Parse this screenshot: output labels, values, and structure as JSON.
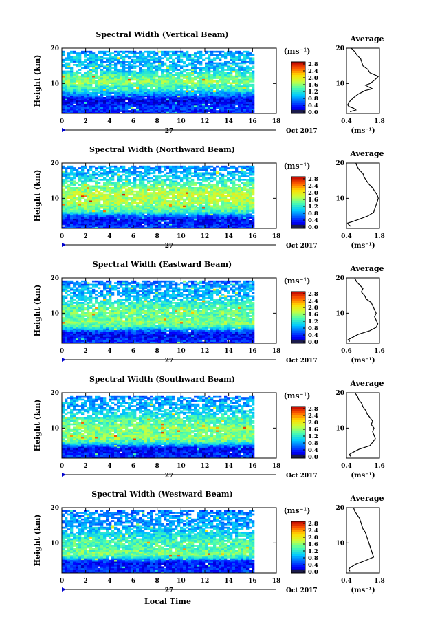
{
  "figure": {
    "xlabel_bottom": "Local Time",
    "date_label": "Oct 2017",
    "day_label": "27",
    "unit_label": "(ms⁻¹)",
    "average_title": "Average",
    "height_label": "Height (km)"
  },
  "chart_data": [
    {
      "type": "heatmap",
      "title": "Spectral Width (Vertical Beam)",
      "xlabel": "Local Time",
      "ylabel": "Height (km)",
      "x_ticks": [
        "0",
        "2",
        "4",
        "6",
        "8",
        "10",
        "12",
        "14",
        "16",
        "18"
      ],
      "xlim": [
        0,
        18
      ],
      "data_xlim": [
        0,
        16
      ],
      "y_ticks": [
        "10",
        "20"
      ],
      "ylim": [
        1.5,
        20
      ],
      "colorbar": {
        "label": "(ms⁻¹)",
        "ticks": [
          "0.0",
          "0.4",
          "0.8",
          "1.2",
          "1.6",
          "2.0",
          "2.4",
          "2.8"
        ],
        "range": [
          0,
          3.0
        ]
      },
      "rows": [
        {
          "h": 2.0,
          "v": 0.45
        },
        {
          "h": 3.0,
          "v": 0.6
        },
        {
          "h": 4.0,
          "v": 0.4
        },
        {
          "h": 5.0,
          "v": 0.3
        },
        {
          "h": 6.0,
          "v": 0.55
        },
        {
          "h": 7.0,
          "v": 0.9
        },
        {
          "h": 8.0,
          "v": 1.3
        },
        {
          "h": 9.0,
          "v": 1.4
        },
        {
          "h": 10.0,
          "v": 1.7
        },
        {
          "h": 11.0,
          "v": 1.6
        },
        {
          "h": 12.0,
          "v": 1.5
        },
        {
          "h": 13.0,
          "v": 1.2
        },
        {
          "h": 14.0,
          "v": 1.0
        },
        {
          "h": 15.0,
          "v": 1.1
        },
        {
          "h": 16.0,
          "v": 0.9
        },
        {
          "h": 17.0,
          "v": 1.2
        },
        {
          "h": 18.0,
          "v": 1.0
        },
        {
          "h": 19.0,
          "v": 0.8
        }
      ],
      "average": {
        "title": "Average",
        "xlabel": "(ms⁻¹)",
        "x_ticks": [
          "0.4",
          "1.8"
        ],
        "xlim": [
          0.4,
          1.8
        ],
        "y_ticks": [
          "10",
          "20"
        ],
        "ylim": [
          1.5,
          20
        ],
        "profile": [
          [
            2.0,
            0.55
          ],
          [
            2.5,
            0.8
          ],
          [
            3.0,
            0.7
          ],
          [
            3.5,
            0.5
          ],
          [
            4.0,
            0.45
          ],
          [
            5.0,
            0.55
          ],
          [
            6.0,
            0.7
          ],
          [
            7.0,
            0.9
          ],
          [
            8.0,
            1.2
          ],
          [
            8.5,
            1.5
          ],
          [
            9.0,
            1.35
          ],
          [
            9.5,
            1.2
          ],
          [
            10.0,
            1.4
          ],
          [
            11.0,
            1.6
          ],
          [
            12.0,
            1.75
          ],
          [
            13.0,
            1.4
          ],
          [
            14.0,
            1.3
          ],
          [
            15.0,
            1.1
          ],
          [
            16.0,
            1.05
          ],
          [
            17.0,
            1.0
          ],
          [
            18.0,
            0.85
          ],
          [
            19.0,
            0.75
          ],
          [
            20.0,
            0.6
          ]
        ]
      }
    },
    {
      "type": "heatmap",
      "title": "Spectral Width (Northward Beam)",
      "xlabel": "Local Time",
      "ylabel": "Height (km)",
      "x_ticks": [
        "0",
        "2",
        "4",
        "6",
        "8",
        "10",
        "12",
        "14",
        "16",
        "18"
      ],
      "xlim": [
        0,
        18
      ],
      "data_xlim": [
        0,
        16
      ],
      "y_ticks": [
        "10",
        "20"
      ],
      "ylim": [
        1.5,
        20
      ],
      "colorbar": {
        "label": "(ms⁻¹)",
        "ticks": [
          "0.0",
          "0.4",
          "0.8",
          "1.2",
          "1.6",
          "2.0",
          "2.4",
          "2.8"
        ],
        "range": [
          0,
          3.0
        ]
      },
      "rows": [
        {
          "h": 2.0,
          "v": 0.5
        },
        {
          "h": 3.0,
          "v": 0.4
        },
        {
          "h": 4.0,
          "v": 0.35
        },
        {
          "h": 5.0,
          "v": 0.8
        },
        {
          "h": 6.0,
          "v": 1.4
        },
        {
          "h": 7.0,
          "v": 1.6
        },
        {
          "h": 8.0,
          "v": 1.7
        },
        {
          "h": 9.0,
          "v": 1.8
        },
        {
          "h": 10.0,
          "v": 1.8
        },
        {
          "h": 11.0,
          "v": 1.9
        },
        {
          "h": 12.0,
          "v": 1.7
        },
        {
          "h": 13.0,
          "v": 1.6
        },
        {
          "h": 14.0,
          "v": 1.5
        },
        {
          "h": 15.0,
          "v": 1.2
        },
        {
          "h": 16.0,
          "v": 1.1
        },
        {
          "h": 17.0,
          "v": 1.0
        },
        {
          "h": 18.0,
          "v": 0.9
        },
        {
          "h": 19.0,
          "v": 0.85
        }
      ],
      "average": {
        "title": "Average",
        "xlabel": "(ms⁻¹)",
        "x_ticks": [
          "0.4",
          "1.8"
        ],
        "xlim": [
          0.4,
          1.8
        ],
        "y_ticks": [
          "10",
          "20"
        ],
        "ylim": [
          1.5,
          20
        ],
        "profile": [
          [
            2.0,
            0.6
          ],
          [
            2.5,
            0.5
          ],
          [
            3.0,
            0.45
          ],
          [
            3.5,
            0.7
          ],
          [
            4.0,
            0.9
          ],
          [
            5.0,
            1.3
          ],
          [
            6.0,
            1.55
          ],
          [
            7.0,
            1.6
          ],
          [
            8.0,
            1.65
          ],
          [
            9.0,
            1.7
          ],
          [
            10.0,
            1.75
          ],
          [
            11.0,
            1.7
          ],
          [
            12.0,
            1.6
          ],
          [
            13.0,
            1.5
          ],
          [
            14.0,
            1.35
          ],
          [
            15.0,
            1.25
          ],
          [
            16.0,
            1.15
          ],
          [
            17.0,
            1.1
          ],
          [
            18.0,
            0.95
          ],
          [
            19.0,
            0.85
          ],
          [
            20.0,
            0.8
          ]
        ]
      }
    },
    {
      "type": "heatmap",
      "title": "Spectral Width (Eastward Beam)",
      "xlabel": "Local Time",
      "ylabel": "Height (km)",
      "x_ticks": [
        "0",
        "2",
        "4",
        "6",
        "8",
        "10",
        "12",
        "14",
        "16",
        "18"
      ],
      "xlim": [
        0,
        18
      ],
      "data_xlim": [
        0,
        16
      ],
      "y_ticks": [
        "10",
        "20"
      ],
      "ylim": [
        1.5,
        20
      ],
      "colorbar": {
        "label": "(ms⁻¹)",
        "ticks": [
          "0.0",
          "0.4",
          "0.8",
          "1.2",
          "1.6",
          "2.0",
          "2.4",
          "2.8"
        ],
        "range": [
          0,
          3.0
        ]
      },
      "rows": [
        {
          "h": 2.0,
          "v": 0.5
        },
        {
          "h": 3.0,
          "v": 0.4
        },
        {
          "h": 4.0,
          "v": 0.35
        },
        {
          "h": 5.0,
          "v": 0.8
        },
        {
          "h": 6.0,
          "v": 1.4
        },
        {
          "h": 7.0,
          "v": 1.7
        },
        {
          "h": 8.0,
          "v": 1.6
        },
        {
          "h": 9.0,
          "v": 1.5
        },
        {
          "h": 10.0,
          "v": 1.6
        },
        {
          "h": 11.0,
          "v": 1.5
        },
        {
          "h": 12.0,
          "v": 1.4
        },
        {
          "h": 13.0,
          "v": 1.3
        },
        {
          "h": 14.0,
          "v": 1.1
        },
        {
          "h": 15.0,
          "v": 1.0
        },
        {
          "h": 16.0,
          "v": 0.9
        },
        {
          "h": 17.0,
          "v": 1.0
        },
        {
          "h": 18.0,
          "v": 0.8
        },
        {
          "h": 19.0,
          "v": 0.7
        }
      ],
      "average": {
        "title": "Average",
        "xlabel": "(ms⁻¹)",
        "x_ticks": [
          "0.6",
          "1.6"
        ],
        "xlim": [
          0.6,
          1.6
        ],
        "y_ticks": [
          "10",
          "20"
        ],
        "ylim": [
          1.5,
          20
        ],
        "profile": [
          [
            2.0,
            0.7
          ],
          [
            2.5,
            0.65
          ],
          [
            3.0,
            0.75
          ],
          [
            4.0,
            0.95
          ],
          [
            5.0,
            1.3
          ],
          [
            6.0,
            1.5
          ],
          [
            7.0,
            1.55
          ],
          [
            8.0,
            1.5
          ],
          [
            9.0,
            1.45
          ],
          [
            10.0,
            1.5
          ],
          [
            11.0,
            1.45
          ],
          [
            12.0,
            1.4
          ],
          [
            13.0,
            1.35
          ],
          [
            14.0,
            1.2
          ],
          [
            15.0,
            1.15
          ],
          [
            16.0,
            1.05
          ],
          [
            17.0,
            1.1
          ],
          [
            18.0,
            1.0
          ],
          [
            19.0,
            0.9
          ],
          [
            20.0,
            0.85
          ]
        ]
      }
    },
    {
      "type": "heatmap",
      "title": "Spectral Width (Southward Beam)",
      "xlabel": "Local Time",
      "ylabel": "Height (km)",
      "x_ticks": [
        "0",
        "2",
        "4",
        "6",
        "8",
        "10",
        "12",
        "14",
        "16",
        "18"
      ],
      "xlim": [
        0,
        18
      ],
      "data_xlim": [
        0,
        16
      ],
      "y_ticks": [
        "10",
        "20"
      ],
      "ylim": [
        1.5,
        20
      ],
      "colorbar": {
        "label": "(ms⁻¹)",
        "ticks": [
          "0.0",
          "0.4",
          "0.8",
          "1.2",
          "1.6",
          "2.0",
          "2.4",
          "2.8"
        ],
        "range": [
          0,
          3.0
        ]
      },
      "rows": [
        {
          "h": 2.0,
          "v": 0.5
        },
        {
          "h": 3.0,
          "v": 0.4
        },
        {
          "h": 4.0,
          "v": 0.35
        },
        {
          "h": 5.0,
          "v": 0.9
        },
        {
          "h": 6.0,
          "v": 1.5
        },
        {
          "h": 7.0,
          "v": 1.7
        },
        {
          "h": 8.0,
          "v": 1.6
        },
        {
          "h": 9.0,
          "v": 1.6
        },
        {
          "h": 10.0,
          "v": 1.7
        },
        {
          "h": 11.0,
          "v": 1.5
        },
        {
          "h": 12.0,
          "v": 1.5
        },
        {
          "h": 13.0,
          "v": 1.3
        },
        {
          "h": 14.0,
          "v": 1.2
        },
        {
          "h": 15.0,
          "v": 1.1
        },
        {
          "h": 16.0,
          "v": 0.9
        },
        {
          "h": 17.0,
          "v": 1.0
        },
        {
          "h": 18.0,
          "v": 0.85
        },
        {
          "h": 19.0,
          "v": 0.75
        }
      ],
      "average": {
        "title": "Average",
        "xlabel": "(ms⁻¹)",
        "x_ticks": [
          "0.4",
          "1.6"
        ],
        "xlim": [
          0.4,
          1.6
        ],
        "y_ticks": [
          "10",
          "20"
        ],
        "ylim": [
          1.5,
          20
        ],
        "profile": [
          [
            2.0,
            0.55
          ],
          [
            2.5,
            0.5
          ],
          [
            3.0,
            0.6
          ],
          [
            4.0,
            0.85
          ],
          [
            5.0,
            1.25
          ],
          [
            6.0,
            1.35
          ],
          [
            7.0,
            1.45
          ],
          [
            8.0,
            1.4
          ],
          [
            9.0,
            1.35
          ],
          [
            10.0,
            1.4
          ],
          [
            11.0,
            1.3
          ],
          [
            12.0,
            1.35
          ],
          [
            13.0,
            1.25
          ],
          [
            14.0,
            1.15
          ],
          [
            15.0,
            1.1
          ],
          [
            16.0,
            1.0
          ],
          [
            17.0,
            0.95
          ],
          [
            18.0,
            0.85
          ],
          [
            19.0,
            0.8
          ],
          [
            20.0,
            0.7
          ]
        ]
      }
    },
    {
      "type": "heatmap",
      "title": "Spectral Width (Westward Beam)",
      "xlabel": "Local Time",
      "ylabel": "Height (km)",
      "x_ticks": [
        "0",
        "2",
        "4",
        "6",
        "8",
        "10",
        "12",
        "14",
        "16",
        "18"
      ],
      "xlim": [
        0,
        18
      ],
      "data_xlim": [
        0,
        16
      ],
      "y_ticks": [
        "10",
        "20"
      ],
      "ylim": [
        1.5,
        20
      ],
      "colorbar": {
        "label": "(ms⁻¹)",
        "ticks": [
          "0.0",
          "0.4",
          "0.8",
          "1.2",
          "1.6",
          "2.0",
          "2.4",
          "2.8"
        ],
        "range": [
          0,
          3.0
        ]
      },
      "rows": [
        {
          "h": 2.0,
          "v": 0.5
        },
        {
          "h": 3.0,
          "v": 0.45
        },
        {
          "h": 4.0,
          "v": 0.4
        },
        {
          "h": 5.0,
          "v": 0.7
        },
        {
          "h": 6.0,
          "v": 1.5
        },
        {
          "h": 7.0,
          "v": 1.6
        },
        {
          "h": 8.0,
          "v": 1.5
        },
        {
          "h": 9.0,
          "v": 1.4
        },
        {
          "h": 10.0,
          "v": 1.5
        },
        {
          "h": 11.0,
          "v": 1.3
        },
        {
          "h": 12.0,
          "v": 1.2
        },
        {
          "h": 13.0,
          "v": 1.1
        },
        {
          "h": 14.0,
          "v": 1.0
        },
        {
          "h": 15.0,
          "v": 0.9
        },
        {
          "h": 16.0,
          "v": 0.85
        },
        {
          "h": 17.0,
          "v": 0.9
        },
        {
          "h": 18.0,
          "v": 0.8
        },
        {
          "h": 19.0,
          "v": 0.7
        }
      ],
      "average": {
        "title": "Average",
        "xlabel": "(ms⁻¹)",
        "x_ticks": [
          "0.4",
          "1.8"
        ],
        "xlim": [
          0.4,
          1.8
        ],
        "y_ticks": [
          "10",
          "20"
        ],
        "ylim": [
          1.5,
          20
        ],
        "profile": [
          [
            2.0,
            0.55
          ],
          [
            2.5,
            0.5
          ],
          [
            3.0,
            0.55
          ],
          [
            4.0,
            0.8
          ],
          [
            5.0,
            1.2
          ],
          [
            6.0,
            1.55
          ],
          [
            7.0,
            1.5
          ],
          [
            8.0,
            1.45
          ],
          [
            9.0,
            1.4
          ],
          [
            10.0,
            1.35
          ],
          [
            11.0,
            1.3
          ],
          [
            12.0,
            1.25
          ],
          [
            13.0,
            1.2
          ],
          [
            14.0,
            1.1
          ],
          [
            15.0,
            1.05
          ],
          [
            16.0,
            1.0
          ],
          [
            17.0,
            0.95
          ],
          [
            18.0,
            0.85
          ],
          [
            19.0,
            0.75
          ],
          [
            20.0,
            0.7
          ]
        ]
      }
    }
  ]
}
